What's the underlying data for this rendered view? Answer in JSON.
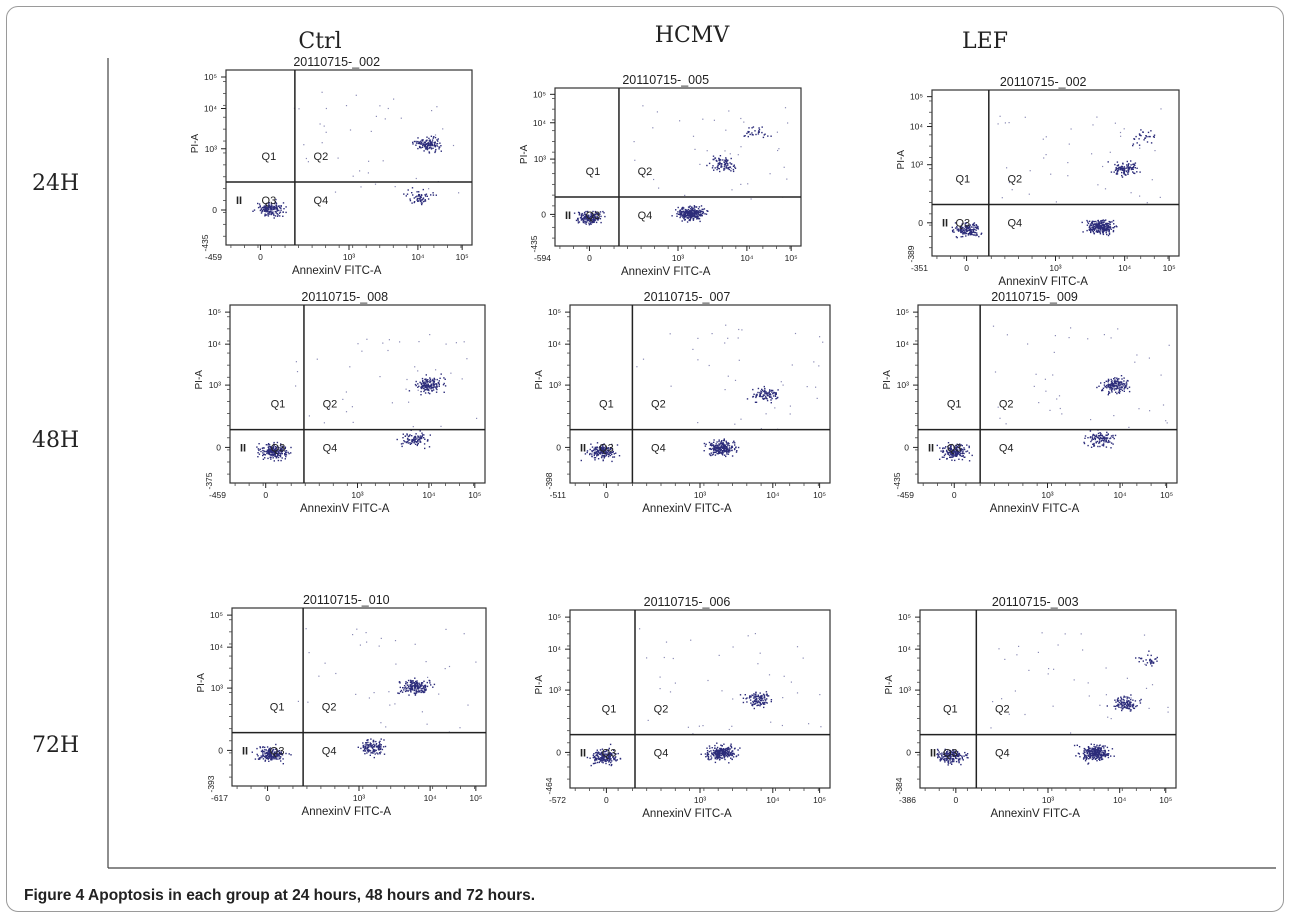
{
  "figure": {
    "caption_label": "Figure 4",
    "caption_text": " Apoptosis in each group at 24 hours, 48 hours and 72 hours."
  },
  "chart_data": {
    "type": "scatter",
    "columns": [
      "Ctrl",
      "HCMV",
      "LEF"
    ],
    "rows": [
      "24H",
      "48H",
      "72H"
    ],
    "xlabel": "AnnexinV FITC-A",
    "ylabel": "PI-A",
    "quadrants": [
      "Q1",
      "Q2",
      "Q3",
      "Q4"
    ],
    "gate_label": "II",
    "x_ticks": [
      "0",
      "10³",
      "10⁴",
      "10⁵"
    ],
    "y_ticks": [
      "0",
      "10³",
      "10⁴",
      "10⁵"
    ],
    "point_color": "#2c2c7a",
    "panels": [
      {
        "row": "24H",
        "col": "Ctrl",
        "title": "20110715-_002",
        "x_min": "-459",
        "y_min": "-435",
        "x_gate": 0.28,
        "y_gate": 0.36,
        "clusters": [
          {
            "x": 0.18,
            "y": 0.21,
            "n": 160
          },
          {
            "x": 0.82,
            "y": 0.58,
            "n": 130
          },
          {
            "x": 0.78,
            "y": 0.28,
            "n": 60
          }
        ]
      },
      {
        "row": "24H",
        "col": "HCMV",
        "title": "20110715-_005",
        "x_min": "-594",
        "y_min": "-435",
        "x_gate": 0.26,
        "y_gate": 0.31,
        "clusters": [
          {
            "x": 0.14,
            "y": 0.18,
            "n": 170
          },
          {
            "x": 0.55,
            "y": 0.21,
            "n": 260
          },
          {
            "x": 0.68,
            "y": 0.52,
            "n": 90
          },
          {
            "x": 0.82,
            "y": 0.72,
            "n": 30
          }
        ]
      },
      {
        "row": "24H",
        "col": "LEF",
        "title": "20110715-_002",
        "x_min": "-351",
        "y_min": "-389",
        "x_gate": 0.23,
        "y_gate": 0.31,
        "clusters": [
          {
            "x": 0.14,
            "y": 0.16,
            "n": 150
          },
          {
            "x": 0.68,
            "y": 0.18,
            "n": 250
          },
          {
            "x": 0.78,
            "y": 0.52,
            "n": 110
          },
          {
            "x": 0.86,
            "y": 0.72,
            "n": 30
          }
        ]
      },
      {
        "row": "48H",
        "col": "Ctrl",
        "title": "20110715-_008",
        "x_min": "-459",
        "y_min": "-375",
        "x_gate": 0.29,
        "y_gate": 0.3,
        "clusters": [
          {
            "x": 0.17,
            "y": 0.18,
            "n": 200
          },
          {
            "x": 0.78,
            "y": 0.55,
            "n": 150
          },
          {
            "x": 0.72,
            "y": 0.25,
            "n": 90
          }
        ]
      },
      {
        "row": "48H",
        "col": "HCMV",
        "title": "20110715-_007",
        "x_min": "-511",
        "y_min": "-398",
        "x_gate": 0.24,
        "y_gate": 0.3,
        "clusters": [
          {
            "x": 0.12,
            "y": 0.18,
            "n": 170
          },
          {
            "x": 0.58,
            "y": 0.2,
            "n": 220
          },
          {
            "x": 0.75,
            "y": 0.5,
            "n": 90
          }
        ]
      },
      {
        "row": "48H",
        "col": "LEF",
        "title": "20110715-_009",
        "x_min": "-459",
        "y_min": "-435",
        "x_gate": 0.24,
        "y_gate": 0.3,
        "clusters": [
          {
            "x": 0.14,
            "y": 0.18,
            "n": 170
          },
          {
            "x": 0.76,
            "y": 0.55,
            "n": 150
          },
          {
            "x": 0.7,
            "y": 0.25,
            "n": 110
          }
        ]
      },
      {
        "row": "72H",
        "col": "Ctrl",
        "title": "20110715-_010",
        "x_min": "-617",
        "y_min": "-393",
        "x_gate": 0.28,
        "y_gate": 0.3,
        "clusters": [
          {
            "x": 0.15,
            "y": 0.18,
            "n": 190
          },
          {
            "x": 0.72,
            "y": 0.56,
            "n": 170
          },
          {
            "x": 0.55,
            "y": 0.22,
            "n": 120
          }
        ]
      },
      {
        "row": "72H",
        "col": "HCMV",
        "title": "20110715-_006",
        "x_min": "-572",
        "y_min": "-464",
        "x_gate": 0.25,
        "y_gate": 0.3,
        "clusters": [
          {
            "x": 0.13,
            "y": 0.18,
            "n": 170
          },
          {
            "x": 0.58,
            "y": 0.2,
            "n": 250
          },
          {
            "x": 0.72,
            "y": 0.5,
            "n": 110
          }
        ]
      },
      {
        "row": "72H",
        "col": "LEF",
        "title": "20110715-_003",
        "x_min": "-386",
        "y_min": "-384",
        "x_gate": 0.22,
        "y_gate": 0.3,
        "clusters": [
          {
            "x": 0.12,
            "y": 0.18,
            "n": 170
          },
          {
            "x": 0.68,
            "y": 0.2,
            "n": 260
          },
          {
            "x": 0.8,
            "y": 0.48,
            "n": 110
          },
          {
            "x": 0.9,
            "y": 0.72,
            "n": 30
          }
        ]
      }
    ]
  }
}
